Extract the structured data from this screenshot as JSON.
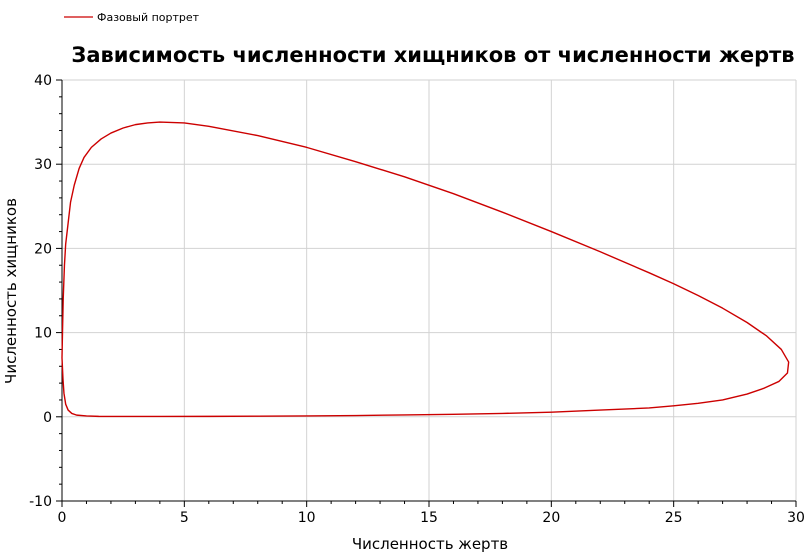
{
  "chart_data": {
    "type": "line",
    "title": "Зависимость численности хищников от численности жертв",
    "xlabel": "Численность жертв",
    "ylabel": "Численность хищников",
    "xlim": [
      0,
      30
    ],
    "ylim": [
      -10,
      40
    ],
    "x_ticks": [
      "0",
      "5",
      "10",
      "15",
      "20",
      "25",
      "30"
    ],
    "y_ticks": [
      "-10",
      "0",
      "10",
      "20",
      "30",
      "40"
    ],
    "grid": true,
    "legend": {
      "position": "top-left"
    },
    "series": [
      {
        "name": "Фазовый портрет",
        "color": "#cc0000",
        "points": [
          [
            0.0,
            7.0
          ],
          [
            0.02,
            10.0
          ],
          [
            0.05,
            14.0
          ],
          [
            0.1,
            18.0
          ],
          [
            0.15,
            20.5
          ],
          [
            0.25,
            23.0
          ],
          [
            0.35,
            25.5
          ],
          [
            0.5,
            27.5
          ],
          [
            0.7,
            29.5
          ],
          [
            0.9,
            30.8
          ],
          [
            1.2,
            32.0
          ],
          [
            1.6,
            33.0
          ],
          [
            2.0,
            33.7
          ],
          [
            2.5,
            34.3
          ],
          [
            3.0,
            34.7
          ],
          [
            3.5,
            34.9
          ],
          [
            4.0,
            35.0
          ],
          [
            5.0,
            34.9
          ],
          [
            6.0,
            34.5
          ],
          [
            8.0,
            33.4
          ],
          [
            10.0,
            32.0
          ],
          [
            12.0,
            30.3
          ],
          [
            14.0,
            28.5
          ],
          [
            16.0,
            26.5
          ],
          [
            18.0,
            24.3
          ],
          [
            20.0,
            22.0
          ],
          [
            22.0,
            19.6
          ],
          [
            24.0,
            17.1
          ],
          [
            25.0,
            15.8
          ],
          [
            26.0,
            14.4
          ],
          [
            27.0,
            12.9
          ],
          [
            28.0,
            11.2
          ],
          [
            28.8,
            9.6
          ],
          [
            29.4,
            8.0
          ],
          [
            29.7,
            6.5
          ],
          [
            29.65,
            5.2
          ],
          [
            29.3,
            4.2
          ],
          [
            28.7,
            3.4
          ],
          [
            28.0,
            2.7
          ],
          [
            27.0,
            2.0
          ],
          [
            26.0,
            1.6
          ],
          [
            25.0,
            1.3
          ],
          [
            24.0,
            1.05
          ],
          [
            22.0,
            0.8
          ],
          [
            20.0,
            0.55
          ],
          [
            18.0,
            0.4
          ],
          [
            16.0,
            0.3
          ],
          [
            14.0,
            0.22
          ],
          [
            12.0,
            0.15
          ],
          [
            10.0,
            0.1
          ],
          [
            8.0,
            0.07
          ],
          [
            6.0,
            0.05
          ],
          [
            4.0,
            0.04
          ],
          [
            2.5,
            0.04
          ],
          [
            1.5,
            0.05
          ],
          [
            1.0,
            0.1
          ],
          [
            0.6,
            0.2
          ],
          [
            0.4,
            0.4
          ],
          [
            0.25,
            0.8
          ],
          [
            0.15,
            1.5
          ],
          [
            0.08,
            2.8
          ],
          [
            0.04,
            4.5
          ],
          [
            0.0,
            7.0
          ]
        ]
      }
    ]
  }
}
